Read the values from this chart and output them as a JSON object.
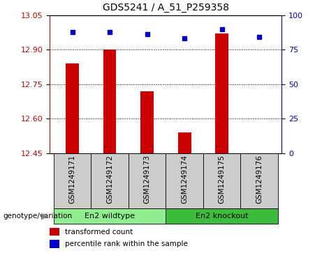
{
  "title": "GDS5241 / A_51_P259358",
  "samples": [
    "GSM1249171",
    "GSM1249172",
    "GSM1249173",
    "GSM1249174",
    "GSM1249175",
    "GSM1249176"
  ],
  "bar_values": [
    12.84,
    12.9,
    12.72,
    12.54,
    12.97,
    12.45
  ],
  "percentile_values": [
    88,
    88,
    86,
    83,
    90,
    84
  ],
  "ymin": 12.45,
  "ymax": 13.05,
  "yticks_left": [
    12.45,
    12.6,
    12.75,
    12.9,
    13.05
  ],
  "yticks_right": [
    0,
    25,
    50,
    75,
    100
  ],
  "bar_color": "#cc0000",
  "dot_color": "#0000cc",
  "group1_label": "En2 wildtype",
  "group2_label": "En2 knockout",
  "group1_indices": [
    0,
    1,
    2
  ],
  "group2_indices": [
    3,
    4,
    5
  ],
  "group1_color": "#90ee90",
  "group2_color": "#3dbb3d",
  "sample_bg_color": "#cccccc",
  "legend_bar_label": "transformed count",
  "legend_dot_label": "percentile rank within the sample",
  "annotation_label": "genotype/variation",
  "title_fontsize": 10,
  "tick_fontsize": 8,
  "label_fontsize": 8,
  "bar_width": 0.35
}
